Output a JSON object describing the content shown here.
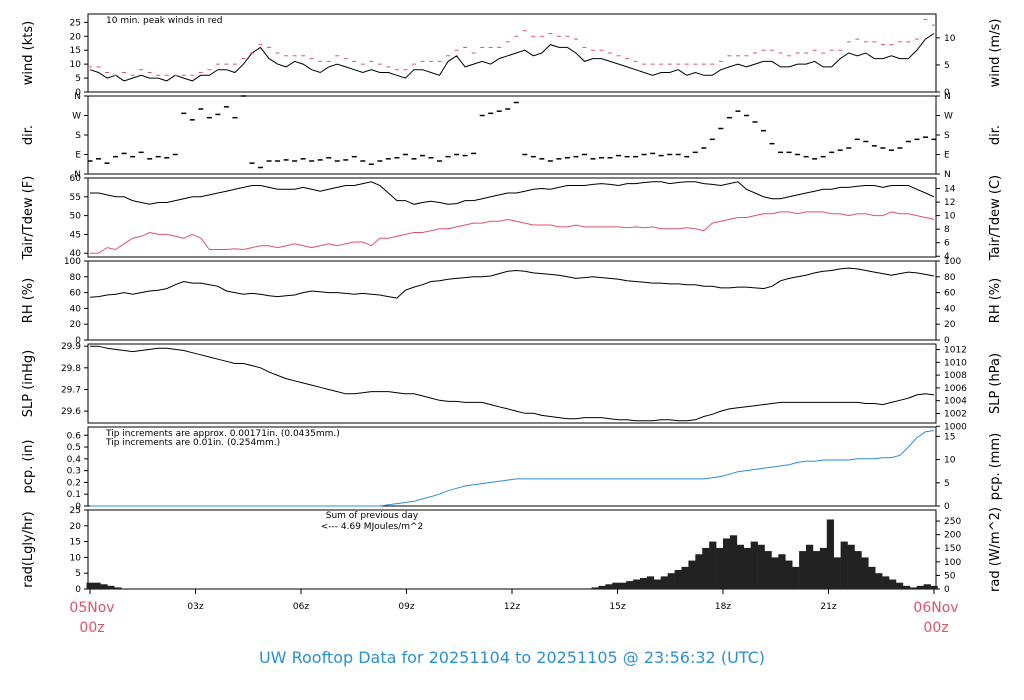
{
  "footer": {
    "title": "UW Rooftop Data for 20251104  to  20251105 @ 23:56:32  (UTC)"
  },
  "time_axis": {
    "start": {
      "day": "05Nov",
      "hour": "00z"
    },
    "end": {
      "day": "06Nov",
      "hour": "00z"
    },
    "tick_labels": [
      "03z",
      "06z",
      "09z",
      "12z",
      "15z",
      "18z",
      "21z"
    ]
  },
  "colors": {
    "red": "#df536b",
    "blue": "#2b8fd6",
    "purple": "#9b30d9",
    "black": "#000000"
  },
  "chart_data": [
    {
      "type": "line",
      "id": "wind",
      "ylabel": "wind (kts)",
      "ylabel_right": "wind (m/s)",
      "ylim": [
        0,
        28
      ],
      "yticks": [
        0,
        5,
        10,
        15,
        20,
        25
      ],
      "yticks_right": [
        0,
        5,
        10
      ],
      "annotation": "10 min. peak winds in red",
      "series": [
        {
          "values": [
            8,
            7,
            5,
            6,
            4,
            5,
            6,
            5,
            5,
            4,
            6,
            5,
            4,
            6,
            6,
            8,
            8,
            7,
            10,
            14,
            16,
            12,
            10,
            9,
            11,
            10,
            8,
            7,
            9,
            10,
            9,
            8,
            7,
            8,
            7,
            7,
            6,
            5,
            8,
            8,
            7,
            6,
            11,
            13,
            9,
            10,
            11,
            10,
            12,
            13,
            14,
            15,
            13,
            14,
            17,
            16,
            16,
            14,
            11,
            12,
            12,
            11,
            10,
            9,
            8,
            7,
            6,
            7,
            7,
            8,
            6,
            7,
            6,
            6,
            8,
            9,
            10,
            9,
            10,
            11,
            11,
            9,
            9,
            10,
            10,
            11,
            9,
            9,
            12,
            14,
            13,
            14,
            12,
            12,
            13,
            12,
            12,
            15,
            19,
            21
          ]
        },
        {
          "values": [
            9,
            9,
            7,
            6,
            7,
            6,
            8,
            7,
            6,
            6,
            6,
            6,
            6,
            7,
            8,
            10,
            10,
            10,
            12,
            14,
            17,
            16,
            14,
            13,
            13,
            13,
            12,
            11,
            11,
            13,
            12,
            11,
            10,
            11,
            10,
            9,
            8,
            8,
            10,
            11,
            11,
            11,
            13,
            15,
            16,
            14,
            16,
            16,
            16,
            18,
            20,
            22,
            20,
            20,
            21,
            20,
            20,
            19,
            16,
            15,
            15,
            14,
            13,
            12,
            11,
            10,
            10,
            10,
            10,
            10,
            10,
            10,
            10,
            10,
            11,
            13,
            13,
            13,
            14,
            15,
            15,
            14,
            13,
            14,
            14,
            15,
            14,
            15,
            15,
            18,
            19,
            18,
            18,
            17,
            17,
            18,
            18,
            19,
            26,
            24
          ]
        }
      ]
    },
    {
      "type": "scatter",
      "id": "dir",
      "ylabel": "dir.",
      "ylabel_right": "dir.",
      "ylim": [
        0,
        360
      ],
      "yticks": [
        0,
        90,
        180,
        270,
        360
      ],
      "ytick_labels": [
        "N",
        "E",
        "S",
        "W",
        "N"
      ],
      "series": [
        {
          "values": [
            60,
            70,
            50,
            80,
            95,
            80,
            100,
            70,
            80,
            75,
            90,
            280,
            250,
            300,
            260,
            275,
            310,
            260,
            360,
            50,
            30,
            60,
            60,
            65,
            60,
            70,
            60,
            65,
            75,
            60,
            65,
            80,
            60,
            45,
            60,
            70,
            75,
            90,
            70,
            85,
            75,
            60,
            80,
            90,
            85,
            95,
            270,
            280,
            290,
            300,
            330,
            90,
            80,
            70,
            60,
            70,
            75,
            80,
            90,
            70,
            75,
            75,
            85,
            80,
            80,
            90,
            95,
            85,
            90,
            90,
            80,
            100,
            120,
            160,
            210,
            260,
            290,
            270,
            240,
            200,
            140,
            100,
            100,
            90,
            80,
            70,
            80,
            100,
            110,
            120,
            160,
            150,
            130,
            120,
            110,
            120,
            150,
            160,
            170,
            160
          ]
        }
      ]
    },
    {
      "type": "line",
      "id": "temp",
      "ylabel": "Tair/Tdew (F)",
      "ylabel_right": "Tair/Tdew (C)",
      "ylim": [
        39,
        60
      ],
      "yticks": [
        40,
        45,
        50,
        55,
        60
      ],
      "yticks_right": [
        4,
        6,
        8,
        10,
        12,
        14
      ],
      "series": [
        {
          "values": [
            56,
            56,
            55.5,
            55,
            55,
            54,
            53.5,
            53,
            53.5,
            53.5,
            54,
            54.5,
            55,
            55,
            55.5,
            56,
            56.5,
            57,
            57.5,
            58,
            58,
            57.5,
            57,
            57,
            57,
            57.5,
            57,
            56.5,
            57,
            57.5,
            58,
            58,
            58.5,
            59,
            58,
            56,
            54,
            54,
            53,
            53.5,
            53.8,
            53.5,
            53,
            53.2,
            54,
            54,
            54.5,
            55,
            55.5,
            56,
            56,
            56.5,
            57,
            57.2,
            57,
            57.5,
            58,
            58,
            58,
            58.3,
            58.5,
            58.3,
            58,
            58.5,
            58.5,
            58.8,
            59,
            59,
            58.5,
            58.8,
            59,
            59,
            58.5,
            58.3,
            58,
            58.5,
            59,
            57,
            56,
            55,
            54.5,
            54.5,
            55,
            55.5,
            56,
            56.5,
            57,
            57,
            57.5,
            57.5,
            57.8,
            58,
            58,
            57.5,
            58,
            58,
            58,
            57,
            56,
            55
          ]
        },
        {
          "values": [
            40,
            40,
            41.5,
            41,
            42.5,
            44,
            44.5,
            45.5,
            45,
            45,
            44.5,
            44,
            45,
            44,
            41,
            41,
            41,
            41.2,
            41,
            41.5,
            42,
            42,
            41.5,
            42,
            42.5,
            42,
            41.5,
            42,
            42.5,
            42,
            42.5,
            43,
            43,
            42,
            44,
            44,
            44.5,
            45,
            45.5,
            45.5,
            46,
            46.5,
            46.5,
            47,
            47.5,
            48,
            48,
            48.5,
            48.5,
            49,
            48.5,
            48,
            47.5,
            47.5,
            47.5,
            47,
            47,
            47.5,
            47,
            47,
            47,
            47,
            47,
            46.8,
            47,
            46.8,
            47,
            46.5,
            46.5,
            46.5,
            46.8,
            46.5,
            46,
            48,
            48.5,
            49,
            49.5,
            49.5,
            50,
            50.5,
            50.5,
            51,
            51,
            50.5,
            51,
            51,
            51,
            50.5,
            50.5,
            50,
            50.5,
            50.5,
            50,
            50,
            51,
            50.5,
            50.5,
            50,
            49.5,
            49
          ]
        }
      ]
    },
    {
      "type": "line",
      "id": "rh",
      "ylabel": "RH (%)",
      "ylabel_right": "RH (%)",
      "ylim": [
        0,
        100
      ],
      "yticks": [
        0,
        20,
        40,
        60,
        80,
        100
      ],
      "yticks_right": [
        0,
        20,
        40,
        60,
        80,
        100
      ],
      "series": [
        {
          "values": [
            54,
            55,
            57,
            58,
            60,
            58,
            60,
            62,
            63,
            65,
            70,
            74,
            72,
            72,
            70,
            68,
            62,
            60,
            58,
            59,
            58,
            56,
            55,
            56,
            57,
            60,
            62,
            61,
            60,
            60,
            59,
            58,
            59,
            58,
            57,
            55,
            53,
            63,
            67,
            70,
            74,
            75,
            77,
            78,
            79,
            80,
            80,
            81,
            84,
            87,
            88,
            87,
            85,
            84,
            83,
            82,
            80,
            78,
            79,
            80,
            79,
            78,
            77,
            75,
            74,
            73,
            72,
            72,
            71,
            71,
            70,
            70,
            68,
            68,
            66,
            66,
            67,
            67,
            66,
            65,
            68,
            75,
            78,
            80,
            82,
            85,
            87,
            88,
            90,
            91,
            90,
            88,
            86,
            84,
            82,
            84,
            86,
            85,
            83,
            81
          ]
        }
      ]
    },
    {
      "type": "line",
      "id": "slp",
      "ylabel": "SLP (inHg)",
      "ylabel_right": "SLP (hPa)",
      "ylim": [
        29.545,
        29.91
      ],
      "yticks": [
        29.6,
        29.7,
        29.8,
        29.9
      ],
      "yticks_right": [
        1000,
        1002,
        1004,
        1006,
        1008,
        1010,
        1012
      ],
      "series": [
        {
          "values": [
            29.9,
            29.9,
            29.89,
            29.885,
            29.88,
            29.875,
            29.88,
            29.885,
            29.89,
            29.89,
            29.885,
            29.88,
            29.87,
            29.86,
            29.85,
            29.84,
            29.83,
            29.82,
            29.82,
            29.81,
            29.8,
            29.78,
            29.765,
            29.75,
            29.74,
            29.73,
            29.72,
            29.71,
            29.7,
            29.69,
            29.68,
            29.68,
            29.685,
            29.69,
            29.69,
            29.69,
            29.685,
            29.68,
            29.68,
            29.67,
            29.66,
            29.65,
            29.645,
            29.645,
            29.64,
            29.64,
            29.64,
            29.63,
            29.62,
            29.61,
            29.6,
            29.59,
            29.59,
            29.58,
            29.575,
            29.57,
            29.565,
            29.565,
            29.57,
            29.57,
            29.57,
            29.565,
            29.56,
            29.56,
            29.555,
            29.555,
            29.555,
            29.56,
            29.56,
            29.555,
            29.555,
            29.56,
            29.575,
            29.585,
            29.6,
            29.61,
            29.615,
            29.62,
            29.625,
            29.63,
            29.635,
            29.64,
            29.64,
            29.64,
            29.64,
            29.64,
            29.64,
            29.64,
            29.64,
            29.64,
            29.64,
            29.635,
            29.635,
            29.63,
            29.64,
            29.65,
            29.66,
            29.675,
            29.68,
            29.675
          ]
        }
      ]
    },
    {
      "type": "line",
      "id": "pcp",
      "ylabel": "pcp. (in)",
      "ylabel_right": "pcp. (mm)",
      "ylim": [
        0,
        0.67
      ],
      "yticks": [
        0,
        0.1,
        0.2,
        0.3,
        0.4,
        0.5,
        0.6
      ],
      "yticks_right": [
        0,
        5,
        10,
        15
      ],
      "annotations": [
        {
          "text": "Tip increments are approx. 0.00171in. (0.0435mm.)",
          "color": "red"
        },
        {
          "text": "Tip increments are 0.01in. (0.254mm.)",
          "color": "blue"
        }
      ],
      "series": [
        {
          "values": [
            0,
            0,
            0,
            0,
            0,
            0,
            0,
            0,
            0,
            0,
            0,
            0,
            0,
            0,
            0,
            0,
            0,
            0,
            0,
            0,
            0,
            0,
            0,
            0,
            0,
            0,
            0,
            0,
            0,
            0,
            0,
            0,
            0,
            0,
            0,
            0.01,
            0.02,
            0.03,
            0.04,
            0.06,
            0.08,
            0.1,
            0.13,
            0.15,
            0.17,
            0.18,
            0.19,
            0.2,
            0.21,
            0.22,
            0.23,
            0.23,
            0.23,
            0.23,
            0.23,
            0.23,
            0.23,
            0.23,
            0.23,
            0.23,
            0.23,
            0.23,
            0.23,
            0.23,
            0.23,
            0.23,
            0.23,
            0.23,
            0.23,
            0.23,
            0.23,
            0.23,
            0.23,
            0.24,
            0.25,
            0.27,
            0.29,
            0.3,
            0.31,
            0.32,
            0.33,
            0.34,
            0.35,
            0.37,
            0.38,
            0.38,
            0.39,
            0.39,
            0.39,
            0.39,
            0.4,
            0.4,
            0.4,
            0.41,
            0.41,
            0.43,
            0.5,
            0.58,
            0.63,
            0.64
          ]
        }
      ]
    },
    {
      "type": "area",
      "id": "rad",
      "ylabel": "rad(Lgly/hr)",
      "ylabel_right": "rad (W/m^2)",
      "ylim": [
        0,
        25
      ],
      "yticks": [
        0,
        5,
        10,
        15,
        20,
        25
      ],
      "yticks_right": [
        0,
        50,
        100,
        150,
        200,
        250
      ],
      "annotation": [
        "Sum of previous day",
        "<--- 4.69 MJoules/m^2"
      ],
      "series": [
        {
          "values": [
            2,
            2,
            1.5,
            1,
            0.5,
            0,
            0,
            0,
            0,
            0,
            0,
            0,
            0,
            0,
            0,
            0,
            0,
            0,
            0,
            0,
            0,
            0,
            0,
            0,
            0,
            0,
            0,
            0,
            0,
            0,
            0,
            0,
            0,
            0,
            0,
            0,
            0,
            0,
            0,
            0,
            0,
            0,
            0,
            0,
            0,
            0,
            0,
            0,
            0,
            0,
            0,
            0,
            0,
            0,
            0,
            0,
            0,
            0,
            0,
            0,
            0,
            0,
            0,
            0,
            0,
            0,
            0,
            0,
            0,
            0,
            0,
            0,
            0.2,
            0.5,
            1,
            1.5,
            2,
            2,
            2.5,
            3,
            3.5,
            4,
            3,
            4,
            5,
            6,
            7,
            9,
            11,
            13,
            15,
            13,
            16,
            17,
            14,
            13,
            15,
            14,
            12,
            10,
            11,
            9,
            7,
            12,
            14,
            12,
            13,
            22,
            10,
            15,
            14,
            12,
            10,
            7,
            5,
            4,
            3,
            2,
            1,
            0.5,
            1,
            1.5,
            1
          ]
        }
      ]
    }
  ]
}
